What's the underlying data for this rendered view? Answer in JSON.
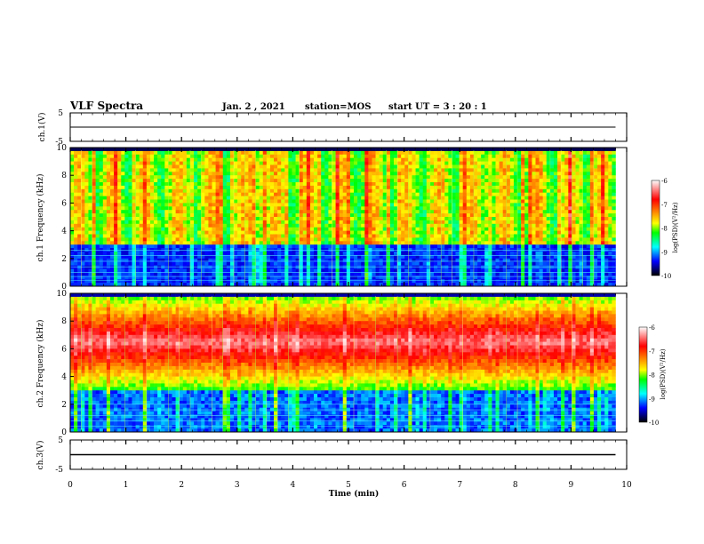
{
  "header": {
    "title": "VLF Spectra",
    "date": "Jan. 2 , 2021",
    "station": "station=MOS",
    "start": "start UT = 3 : 20 : 1"
  },
  "colorbar": {
    "label": "log(PSD)(V²/Hz)",
    "ticks": [
      "-6",
      "-7",
      "-8",
      "-9",
      "-10"
    ],
    "colors": [
      "#ffffff",
      "#ff0000",
      "#ffff00",
      "#00ff00",
      "#00ffff",
      "#0000ff",
      "#000000"
    ]
  },
  "chart_data": [
    {
      "type": "line",
      "panel": "ch1-waveform",
      "ylabel": "ch.1(V)",
      "ylim": [
        -5,
        5
      ],
      "ytick_labels": [
        "5",
        "-5"
      ],
      "series": [
        {
          "x": [
            0,
            9.8
          ],
          "values": [
            0,
            0
          ]
        }
      ]
    },
    {
      "type": "heatmap",
      "panel": "ch1-spectrogram",
      "ylabel": "ch.1 Frequency (kHz)",
      "xlim": [
        0,
        10
      ],
      "ylim": [
        0,
        10
      ],
      "ytick_labels": [
        "0",
        "2",
        "4",
        "6",
        "8",
        "10"
      ],
      "z_range": [
        -10,
        -6
      ]
    },
    {
      "type": "heatmap",
      "panel": "ch2-spectrogram",
      "ylabel": "ch.2 Frequency (kHz)",
      "xlim": [
        0,
        10
      ],
      "ylim": [
        0,
        10
      ],
      "ytick_labels": [
        "0",
        "2",
        "4",
        "6",
        "8",
        "10"
      ],
      "z_range": [
        -10,
        -6
      ]
    },
    {
      "type": "line",
      "panel": "ch3-waveform",
      "ylabel": "ch.3(V)",
      "ylim": [
        -5,
        5
      ],
      "ytick_labels": [
        "5",
        "-5"
      ],
      "series": [
        {
          "x": [
            0,
            9.8
          ],
          "values": [
            0,
            0
          ]
        }
      ]
    }
  ],
  "xaxis": {
    "label": "Time (min)",
    "ticks": [
      "0",
      "1",
      "2",
      "3",
      "4",
      "5",
      "6",
      "7",
      "8",
      "9",
      "10"
    ]
  }
}
